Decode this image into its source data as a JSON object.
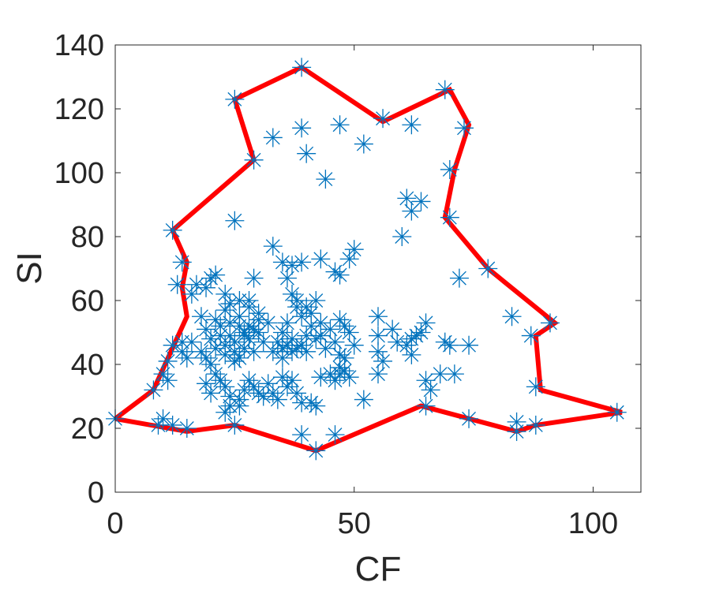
{
  "chart_data": {
    "type": "scatter",
    "xlabel": "CF",
    "ylabel": "SI",
    "xlim": [
      0,
      110
    ],
    "ylim": [
      0,
      140
    ],
    "xticks": [
      0,
      50,
      100
    ],
    "yticks": [
      0,
      20,
      40,
      60,
      80,
      100,
      120,
      140
    ],
    "grid": false,
    "legend": "none",
    "series": [
      {
        "marker": "asterisk",
        "color": "#0072BD",
        "points": [
          [
            0,
            23
          ],
          [
            9,
            21
          ],
          [
            10,
            23
          ],
          [
            12,
            21
          ],
          [
            15,
            20
          ],
          [
            25,
            21
          ],
          [
            39,
            18
          ],
          [
            42,
            13
          ],
          [
            46,
            18
          ],
          [
            65,
            27
          ],
          [
            74,
            23
          ],
          [
            84,
            19
          ],
          [
            84,
            22
          ],
          [
            88,
            21
          ],
          [
            105,
            25
          ],
          [
            8,
            32
          ],
          [
            10,
            37
          ],
          [
            11,
            35
          ],
          [
            11,
            41
          ],
          [
            12,
            46
          ],
          [
            14,
            44
          ],
          [
            14,
            47
          ],
          [
            15,
            42
          ],
          [
            16,
            47
          ],
          [
            12,
            82
          ],
          [
            14,
            72
          ],
          [
            13,
            65
          ],
          [
            16,
            62
          ],
          [
            17,
            65
          ],
          [
            19,
            64
          ],
          [
            20,
            67
          ],
          [
            21,
            68
          ],
          [
            23,
            62
          ],
          [
            23,
            57
          ],
          [
            24,
            59
          ],
          [
            26,
            60
          ],
          [
            28,
            60
          ],
          [
            29,
            67
          ],
          [
            30,
            56
          ],
          [
            18,
            55
          ],
          [
            19,
            51
          ],
          [
            20,
            48
          ],
          [
            21,
            45
          ],
          [
            21,
            54
          ],
          [
            22,
            52
          ],
          [
            22,
            49
          ],
          [
            23,
            46
          ],
          [
            23,
            43
          ],
          [
            24,
            49
          ],
          [
            24,
            53
          ],
          [
            25,
            47
          ],
          [
            25,
            44
          ],
          [
            25,
            41
          ],
          [
            26,
            52
          ],
          [
            26,
            55
          ],
          [
            26,
            42
          ],
          [
            27,
            49
          ],
          [
            27,
            45
          ],
          [
            27,
            50
          ],
          [
            28,
            52
          ],
          [
            28,
            48
          ],
          [
            28,
            58
          ],
          [
            29,
            51
          ],
          [
            29,
            44
          ],
          [
            30,
            50
          ],
          [
            31,
            47
          ],
          [
            32,
            53
          ],
          [
            30,
            54
          ],
          [
            18,
            44
          ],
          [
            19,
            42
          ],
          [
            20,
            40
          ],
          [
            21,
            37
          ],
          [
            19,
            34
          ],
          [
            20,
            31
          ],
          [
            22,
            35
          ],
          [
            23,
            33
          ],
          [
            24,
            30
          ],
          [
            24,
            27
          ],
          [
            23,
            25
          ],
          [
            26,
            27
          ],
          [
            26,
            29
          ],
          [
            27,
            32
          ],
          [
            28,
            35
          ],
          [
            29,
            33
          ],
          [
            30,
            31
          ],
          [
            31,
            30
          ],
          [
            32,
            34
          ],
          [
            33,
            31
          ],
          [
            34,
            29
          ],
          [
            33,
            44
          ],
          [
            34,
            47
          ],
          [
            35,
            45
          ],
          [
            35,
            50
          ],
          [
            35,
            42
          ],
          [
            36,
            46
          ],
          [
            36,
            53
          ],
          [
            37,
            48
          ],
          [
            37,
            44
          ],
          [
            38,
            45
          ],
          [
            38,
            58
          ],
          [
            39,
            46
          ],
          [
            39,
            55
          ],
          [
            40,
            44
          ],
          [
            40,
            49
          ],
          [
            41,
            52
          ],
          [
            41,
            56
          ],
          [
            42,
            48
          ],
          [
            42,
            60
          ],
          [
            43,
            53
          ],
          [
            37,
            62
          ],
          [
            38,
            60
          ],
          [
            40,
            58
          ],
          [
            36,
            67
          ],
          [
            35,
            72
          ],
          [
            33,
            77
          ],
          [
            37,
            71
          ],
          [
            39,
            72
          ],
          [
            43,
            73
          ],
          [
            46,
            69
          ],
          [
            47,
            68
          ],
          [
            49,
            73
          ],
          [
            50,
            76
          ],
          [
            35,
            36
          ],
          [
            36,
            33
          ],
          [
            37,
            35
          ],
          [
            38,
            31
          ],
          [
            39,
            28
          ],
          [
            41,
            28
          ],
          [
            42,
            27
          ],
          [
            43,
            36
          ],
          [
            45,
            37
          ],
          [
            46,
            35
          ],
          [
            47,
            37
          ],
          [
            48,
            38
          ],
          [
            48,
            42
          ],
          [
            49,
            36
          ],
          [
            47,
            39
          ],
          [
            43,
            49
          ],
          [
            44,
            45
          ],
          [
            45,
            51
          ],
          [
            46,
            47
          ],
          [
            47,
            43
          ],
          [
            47,
            54
          ],
          [
            48,
            52
          ],
          [
            49,
            50
          ],
          [
            50,
            46
          ],
          [
            55,
            55
          ],
          [
            55,
            49
          ],
          [
            55,
            44
          ],
          [
            56,
            41
          ],
          [
            55,
            37
          ],
          [
            52,
            29
          ],
          [
            58,
            51
          ],
          [
            59,
            47
          ],
          [
            61,
            46
          ],
          [
            62,
            43
          ],
          [
            62,
            48
          ],
          [
            63,
            49
          ],
          [
            64,
            50
          ],
          [
            65,
            53
          ],
          [
            65,
            35
          ],
          [
            66,
            32
          ],
          [
            68,
            37
          ],
          [
            69,
            47
          ],
          [
            70,
            46
          ],
          [
            71,
            37
          ],
          [
            74,
            46
          ],
          [
            72,
            67
          ],
          [
            78,
            70
          ],
          [
            83,
            55
          ],
          [
            87,
            49
          ],
          [
            88,
            33
          ],
          [
            91,
            53
          ],
          [
            60,
            80
          ],
          [
            61,
            92
          ],
          [
            62,
            88
          ],
          [
            64,
            91
          ],
          [
            70,
            86
          ],
          [
            70,
            101
          ],
          [
            73,
            114
          ],
          [
            69,
            126
          ],
          [
            62,
            115
          ],
          [
            56,
            117
          ],
          [
            52,
            109
          ],
          [
            47,
            115
          ],
          [
            39,
            114
          ],
          [
            40,
            106
          ],
          [
            33,
            111
          ],
          [
            29,
            104
          ],
          [
            25,
            123
          ],
          [
            25,
            85
          ],
          [
            39,
            133
          ],
          [
            44,
            98
          ]
        ]
      },
      {
        "name": "boundary",
        "kind": "closed-line",
        "color": "#ff0000",
        "points": [
          [
            0,
            23
          ],
          [
            15,
            19
          ],
          [
            25,
            21
          ],
          [
            42,
            13
          ],
          [
            64,
            27
          ],
          [
            84,
            19
          ],
          [
            88,
            21
          ],
          [
            106,
            25
          ],
          [
            89,
            32
          ],
          [
            88,
            49
          ],
          [
            92,
            53
          ],
          [
            78,
            70
          ],
          [
            69,
            86
          ],
          [
            71,
            101
          ],
          [
            74,
            115
          ],
          [
            70,
            126
          ],
          [
            56,
            116
          ],
          [
            39,
            133
          ],
          [
            25,
            123
          ],
          [
            29,
            104
          ],
          [
            12,
            82
          ],
          [
            15,
            72
          ],
          [
            14,
            64
          ],
          [
            15,
            55
          ],
          [
            8,
            32
          ],
          [
            0,
            23
          ]
        ]
      }
    ]
  }
}
